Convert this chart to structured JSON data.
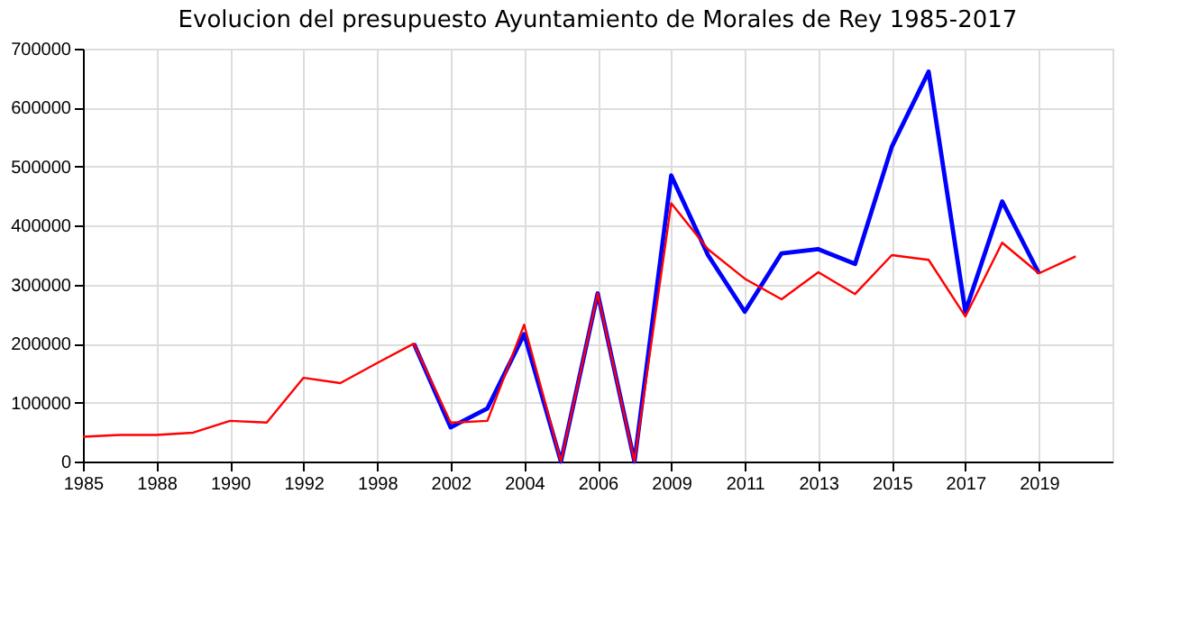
{
  "chart_data": {
    "type": "line",
    "title": "Evolucion del presupuesto Ayuntamiento de Morales de Rey 1985-2017",
    "categories": [
      "1985",
      null,
      "1988",
      null,
      "1990",
      null,
      "1992",
      null,
      "1998",
      null,
      "2002",
      null,
      "2004",
      null,
      "2006",
      null,
      "2009",
      null,
      "2011",
      null,
      "2013",
      null,
      "2015",
      null,
      "2017",
      null,
      "2019",
      null,
      null
    ],
    "series": [
      {
        "color": "#0000ff",
        "values": [
          null,
          null,
          null,
          null,
          null,
          null,
          null,
          null,
          null,
          200000,
          58000,
          90000,
          216000,
          0,
          285000,
          0,
          485000,
          350000,
          254000,
          353000,
          360000,
          335000,
          534000,
          661000,
          254000,
          441000,
          319000,
          null,
          null
        ]
      },
      {
        "color": "#ff0000",
        "values": [
          42000,
          45000,
          45000,
          49000,
          69000,
          66000,
          142000,
          133000,
          167000,
          200000,
          66000,
          69000,
          232000,
          0,
          285000,
          0,
          438000,
          360000,
          310000,
          275000,
          321000,
          284000,
          350000,
          342000,
          246000,
          371000,
          319000,
          348000,
          null
        ]
      }
    ],
    "ylim": [
      0,
      700000
    ],
    "yticks": [
      0,
      100000,
      200000,
      300000,
      400000,
      500000,
      600000,
      700000
    ],
    "grid": true,
    "marker": "none",
    "line_style": "solid"
  }
}
